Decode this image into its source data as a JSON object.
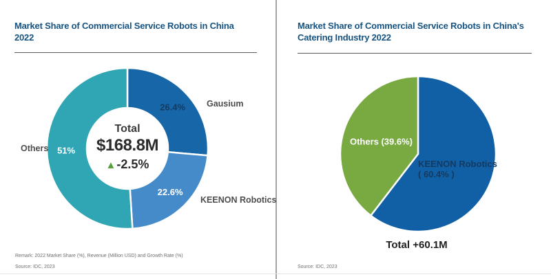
{
  "page": {
    "background": "#ffffff",
    "divider_color": "#a3a3a3",
    "title_color": "#175381"
  },
  "chart_data": [
    {
      "type": "pie",
      "variant": "donut",
      "title": "Market Share of Commercial Service Robots in China 2022",
      "unit": "% market share",
      "start_angle_deg": 0,
      "direction": "clockwise",
      "legend_position": "outside-labels",
      "series": [
        {
          "name": "Gausium",
          "value": 26.4,
          "label": "26.4%",
          "color": "#1766a8",
          "label_color": "#16395f"
        },
        {
          "name": "KEENON Robotics",
          "value": 22.6,
          "label": "22.6%",
          "color": "#458bc9",
          "label_color": "#ffffff"
        },
        {
          "name": "Others",
          "value": 51.0,
          "label": "51%",
          "color": "#30a6b4",
          "label_color": "#ffffff"
        }
      ],
      "center": {
        "label": "Total",
        "value_label": "$168.8M",
        "value_musd": 168.8,
        "growth_label": "-2.5%",
        "growth_rate_pct": -2.5,
        "growth_icon": "up-triangle-icon",
        "growth_icon_glyph": "▲",
        "growth_icon_color": "#57a039"
      }
    },
    {
      "type": "pie",
      "variant": "pie",
      "title": "Market Share of Commercial Service Robots in China's Catering Industry 2022",
      "unit": "% market share",
      "start_angle_deg": 0,
      "direction": "clockwise",
      "legend_position": "inside-labels",
      "series": [
        {
          "name": "KEENON Robotics",
          "value": 60.4,
          "share_label": "( 60.4% )",
          "color": "#1160a5",
          "label_color": "#143a61"
        },
        {
          "name": "Others",
          "value": 39.6,
          "label": "Others (39.6%)",
          "color": "#78aa41",
          "label_color": "#ffffff"
        }
      ],
      "total_label": "Total +60.1M"
    }
  ],
  "footnotes": {
    "remark": "Remark: 2022 Market Share (%), Revenue (Million USD) and Growth Rate (%)",
    "source_left": "Source: IDC, 2023",
    "source_right": "Source: IDC, 2023"
  }
}
